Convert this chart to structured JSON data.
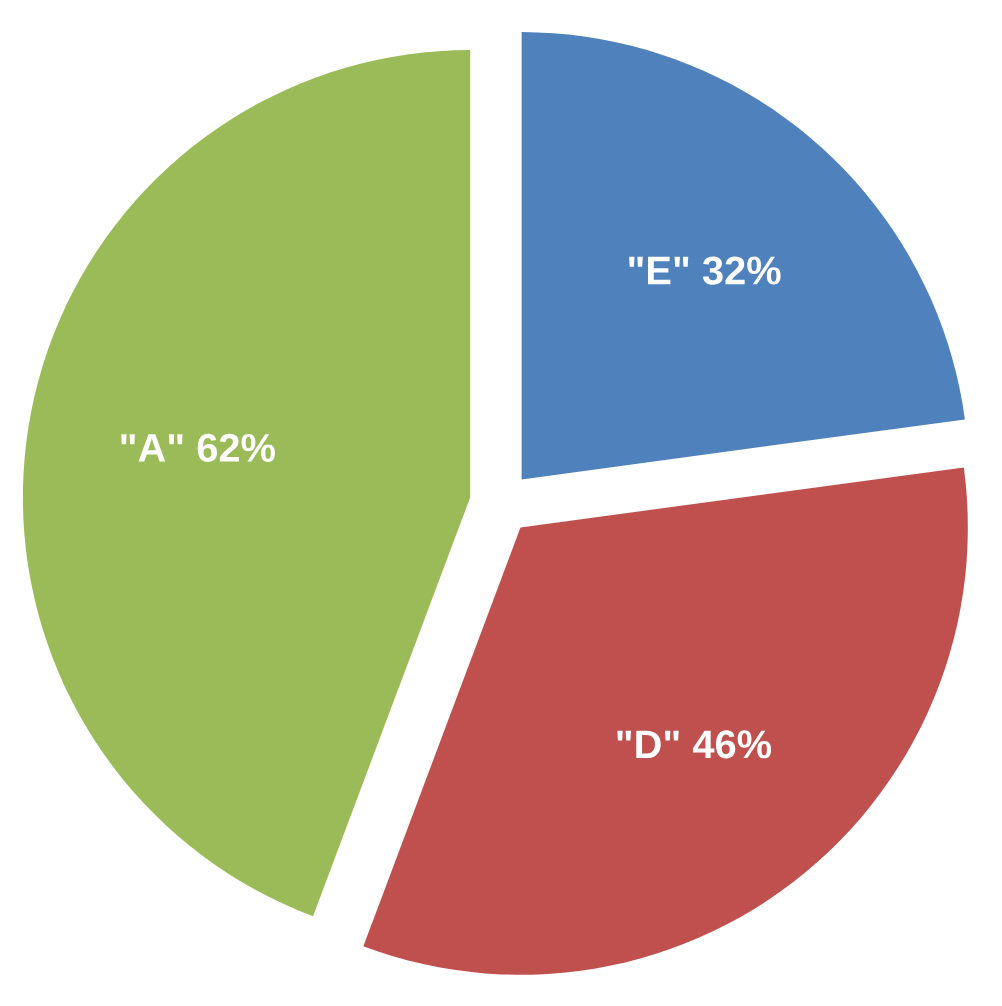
{
  "chart_data": {
    "type": "pie",
    "categories": [
      "\"E\"",
      "\"D\"",
      "\"A\""
    ],
    "values": [
      32,
      46,
      62
    ],
    "value_labels": [
      "32%",
      "46%",
      "62%"
    ],
    "colors": [
      "#4f81bd",
      "#c0504d",
      "#9bbb59"
    ]
  }
}
